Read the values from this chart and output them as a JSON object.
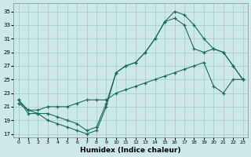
{
  "xlabel": "Humidex (Indice chaleur)",
  "bg_color": "#cce8e8",
  "grid_color": "#aacfcf",
  "line_color": "#1a6b5a",
  "xlim": [
    -0.5,
    23.5
  ],
  "ylim": [
    16.5,
    36.2
  ],
  "xticks": [
    0,
    1,
    2,
    3,
    4,
    5,
    6,
    7,
    8,
    9,
    10,
    11,
    12,
    13,
    14,
    15,
    16,
    17,
    18,
    19,
    20,
    21,
    22,
    23
  ],
  "yticks": [
    17,
    19,
    21,
    23,
    25,
    27,
    29,
    31,
    33,
    35
  ],
  "line1_x": [
    0,
    1,
    2,
    3,
    4,
    5,
    6,
    7,
    8,
    9,
    10,
    11,
    12,
    13,
    14,
    15,
    16,
    17,
    18,
    19,
    20,
    21,
    22,
    23
  ],
  "line1_y": [
    22,
    20,
    20,
    19,
    18.5,
    18,
    17.5,
    17,
    17.5,
    21,
    26,
    27,
    27.5,
    29,
    31,
    33.5,
    34,
    33,
    29.5,
    29,
    29.5,
    29,
    27,
    25
  ],
  "line2_x": [
    0,
    1,
    2,
    3,
    4,
    5,
    6,
    7,
    8,
    9,
    10,
    11,
    12,
    13,
    14,
    15,
    16,
    17,
    18,
    19,
    20,
    21,
    22,
    23
  ],
  "line2_y": [
    21.5,
    20.5,
    20.5,
    21,
    21,
    21,
    21.5,
    22,
    22,
    22,
    23,
    23.5,
    24,
    24.5,
    25,
    25.5,
    26,
    26.5,
    27,
    27.5,
    24,
    23,
    25,
    25
  ],
  "line3_x": [
    0,
    1,
    2,
    3,
    4,
    5,
    6,
    7,
    8,
    9,
    10,
    11,
    12,
    13,
    14,
    15,
    16,
    17,
    18,
    19,
    20,
    21,
    22,
    23
  ],
  "line3_y": [
    22,
    20.5,
    20,
    20,
    19.5,
    19,
    18.5,
    17.5,
    18,
    21.5,
    26,
    27,
    27.5,
    29,
    31,
    33.5,
    35,
    34.5,
    33,
    31,
    29.5,
    29,
    27,
    25
  ]
}
